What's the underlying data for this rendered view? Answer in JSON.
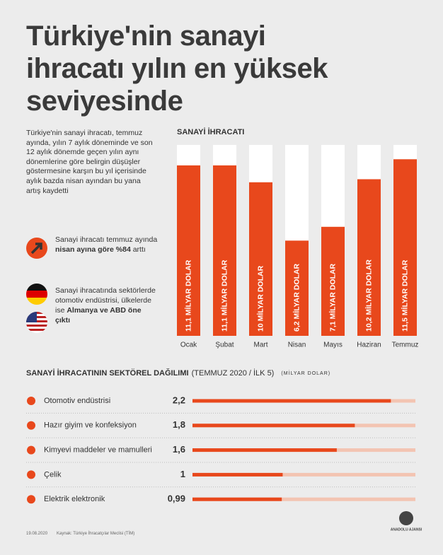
{
  "title": "Türkiye'nin sanayi ihracatı yılın en yüksek seviyesinde",
  "intro": "Türkiye'nin sanayi ihracatı, temmuz ayında, yılın 7 aylık döneminde ve son 12 aylık dönemde geçen yılın aynı dönemlerine göre belirgin düşüşler göstermesine karşın bu yıl içerisinde aylık bazda nisan ayından bu yana artış kaydetti",
  "notes": [
    [
      "Sanayi ihracatı temmuz ayında ",
      "nisan ayına göre %84",
      " arttı"
    ],
    [
      "Sanayi ihracatında sektörlerde otomotiv endüstrisi, ülkelerde ise ",
      "Almanya ve ABD öne çıktı",
      ""
    ]
  ],
  "chart_data": [
    {
      "type": "bar",
      "title": "SANAYİ İHRACATI",
      "color": "#e8481c",
      "categories": [
        "Ocak",
        "Şubat",
        "Mart",
        "Nisan",
        "Mayıs",
        "Haziran",
        "Temmuz"
      ],
      "values": [
        11.1,
        11.1,
        10,
        6.2,
        7.1,
        10.2,
        11.5
      ],
      "value_labels": [
        "11,1 MİLYAR DOLAR",
        "11,1 MİLYAR DOLAR",
        "10 MİLYAR DOLAR",
        "6,2 MİLYAR DOLAR",
        "7,1 MİLYAR DOLAR",
        "10,2 MİLYAR DOLAR",
        "11,5 MİLYAR DOLAR"
      ]
    },
    {
      "type": "hbar",
      "title": "SANAYİ İHRACATININ SEKTÖREL DAĞILIMI",
      "subtitle": "(TEMMUZ 2020 / İLK 5)",
      "unit": "(MİLYAR DOLAR)",
      "color": "#e8481c",
      "categories": [
        "Otomotiv endüstrisi",
        "Hazır giyim ve konfeksiyon",
        "Kimyevi maddeler ve mamulleri",
        "Çelik",
        "Elektrik elektronik"
      ],
      "values": [
        2.2,
        1.8,
        1.6,
        1,
        0.99
      ],
      "value_labels": [
        "2,2",
        "1,8",
        "1,6",
        "1",
        "0,99"
      ]
    }
  ],
  "footer": {
    "date": "19.08.2020",
    "source": "Kaynak: Türkiye İhracatçılar Meclisi (TİM)",
    "logo": "ANADOLU AJANSI"
  }
}
